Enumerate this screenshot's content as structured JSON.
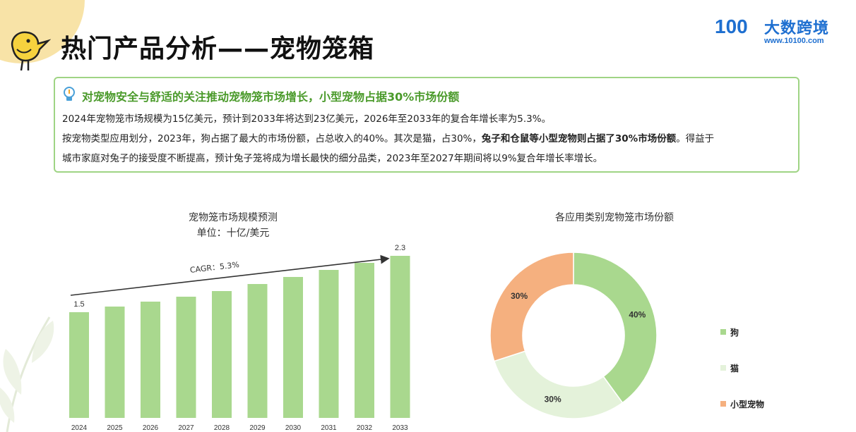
{
  "header": {
    "title": "热门产品分析——宠物笼箱",
    "logo_mark": "100",
    "logo_name": "大数跨境",
    "logo_url": "www.10100.com"
  },
  "summary": {
    "headline": "对宠物安全与舒适的关注推动宠物笼市场增长，小型宠物占据30%市场份额",
    "line1": "2024年宠物笼市场规模为15亿美元，预计到2033年将达到23亿美元，2026年至2033年的复合年增长率为5.3%。",
    "line2_pre": "按宠物类型应用划分，2023年，狗占据了最大的市场份额，占总收入的40%。其次是猫，占30%，",
    "line2_bold": "兔子和仓鼠等小型宠物则占据了30%市场份额",
    "line2_post": "。得益于",
    "line3": "城市家庭对兔子的接受度不断提高，预计兔子笼将成为增长最快的细分品类，2023年至2027年期间将以9%复合年增长率增长。"
  },
  "colors": {
    "bar": "#a9d88e",
    "dog": "#a9d88e",
    "cat": "#e4f2da",
    "small_pet": "#f5b07f",
    "accent_green": "#4a9a2a"
  },
  "chart_data": [
    {
      "type": "bar",
      "title": "宠物笼市场规模预测",
      "subtitle": "单位：十亿/美元",
      "categories": [
        "2024",
        "2025",
        "2026",
        "2027",
        "2028",
        "2029",
        "2030",
        "2031",
        "2032",
        "2033"
      ],
      "values": [
        1.5,
        1.58,
        1.65,
        1.72,
        1.8,
        1.9,
        2.0,
        2.1,
        2.2,
        2.3
      ],
      "value_labels": [
        "1.5",
        "",
        "",
        "",
        "",
        "",
        "",
        "",
        "",
        "2.3"
      ],
      "annotation": "CAGR：5.3%",
      "ylim": [
        0,
        2.3
      ],
      "grid": false
    },
    {
      "type": "pie",
      "title": "各应用类别宠物笼市场份额",
      "labels": [
        "狗",
        "猫",
        "小型宠物"
      ],
      "values": [
        40,
        30,
        30
      ],
      "value_labels": [
        "40%",
        "30%",
        "30%"
      ],
      "legend": "right"
    }
  ]
}
